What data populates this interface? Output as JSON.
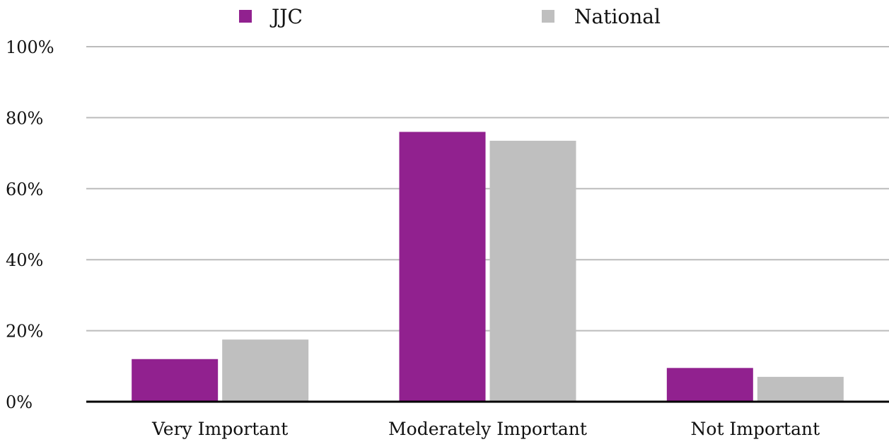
{
  "chart_data": {
    "type": "bar",
    "title": "",
    "xlabel": "",
    "ylabel": "",
    "categories": [
      "Very Important",
      "Moderately Important",
      "Not Important"
    ],
    "series": [
      {
        "name": "JJC",
        "color": "#91218f",
        "values": [
          12,
          76,
          9.5
        ]
      },
      {
        "name": "National",
        "color": "#bfbfbf",
        "values": [
          17.5,
          73.5,
          7
        ]
      }
    ],
    "ylim": [
      0,
      100
    ],
    "yticks": [
      0,
      20,
      40,
      60,
      80,
      100
    ],
    "ytick_labels": [
      "0%",
      "20%",
      "40%",
      "60%",
      "80%",
      "100%"
    ],
    "grid": true,
    "legend_position": "top-center"
  }
}
